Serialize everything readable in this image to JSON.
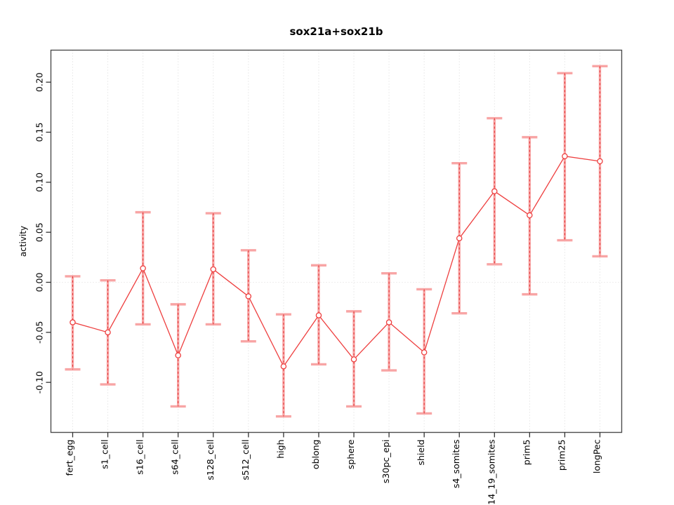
{
  "figure": {
    "background": "#ffffff"
  },
  "chart_data": {
    "type": "line",
    "title": "sox21a+sox21b",
    "xlabel": "",
    "ylabel": "activity",
    "legend": "none",
    "grid": {
      "vertical_gridlines": true,
      "horizontal_zero_line": true,
      "style": "dotted"
    },
    "categories": [
      "fert_egg",
      "s1_cell",
      "s16_cell",
      "s64_cell",
      "s128_cell",
      "s512_cell",
      "high",
      "oblong",
      "sphere",
      "s30pc_epi",
      "shield",
      "s4_somites",
      "s14_19_somites",
      "prim5",
      "prim25",
      "longPec"
    ],
    "series": [
      {
        "name": "activity",
        "marker": "open-circle",
        "values": [
          -0.04,
          -0.05,
          0.014,
          -0.073,
          0.013,
          -0.014,
          -0.084,
          -0.033,
          -0.077,
          -0.04,
          -0.07,
          0.044,
          0.091,
          0.067,
          0.126,
          0.121
        ],
        "error_low": [
          -0.087,
          -0.102,
          -0.042,
          -0.124,
          -0.042,
          -0.059,
          -0.134,
          -0.082,
          -0.124,
          -0.088,
          -0.131,
          -0.031,
          0.018,
          -0.012,
          0.042,
          0.026
        ],
        "error_high": [
          0.006,
          0.002,
          0.07,
          -0.022,
          0.069,
          0.032,
          -0.032,
          0.017,
          -0.029,
          0.009,
          -0.007,
          0.119,
          0.164,
          0.145,
          0.209,
          0.216
        ]
      }
    ],
    "yticks": [
      -0.1,
      -0.05,
      0.0,
      0.05,
      0.1,
      0.15,
      0.2
    ],
    "ytick_labels": [
      "-0.10",
      "-0.05",
      "0.00",
      "0.05",
      "0.10",
      "0.15",
      "0.20"
    ],
    "ylim": [
      -0.15,
      0.232
    ],
    "colors": {
      "line_and_points": "#ee3f3f",
      "error_bar_light": "#f8a5a5",
      "error_bar_dashed": "#e23b3b",
      "gridline": "#d9d9d9",
      "zero_line": "#e2dede",
      "axis_box": "#4d4d4d",
      "tick": "#333333",
      "text": "#000000"
    }
  }
}
